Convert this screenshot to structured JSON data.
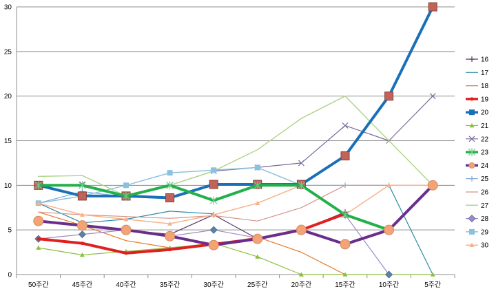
{
  "chart_data": {
    "type": "line",
    "title": "",
    "xlabel": "",
    "ylabel": "",
    "ylim": [
      0,
      30
    ],
    "y_ticks": [
      0,
      5,
      10,
      15,
      20,
      25,
      30
    ],
    "grid": "horizontal",
    "legend_position": "right",
    "categories": [
      "50주간",
      "45주간",
      "40주간",
      "35주간",
      "30주간",
      "25주간",
      "20주간",
      "15주간",
      "10주간",
      "5주간"
    ],
    "series": [
      {
        "name": "16",
        "color": "#5c3566",
        "width": 1.2,
        "marker": "plus",
        "values": [
          6,
          5.5,
          5,
          4.5,
          6.7,
          4,
          5,
          7,
          null,
          null
        ]
      },
      {
        "name": "17",
        "color": "#2e8ba8",
        "width": 1.2,
        "marker": "none",
        "values": [
          8,
          5.8,
          6.2,
          7.1,
          6.8,
          null,
          null,
          null,
          10,
          0
        ]
      },
      {
        "name": "18",
        "color": "#e87722",
        "width": 1.2,
        "marker": "none",
        "values": [
          7,
          5.5,
          3.8,
          3,
          3.3,
          4.2,
          2.5,
          0,
          null,
          null
        ]
      },
      {
        "name": "19",
        "color": "#e02020",
        "width": 4,
        "marker": "dot",
        "values": [
          4,
          3.5,
          2.4,
          2.8,
          3.4,
          4,
          5,
          6.8,
          null,
          null
        ]
      },
      {
        "name": "20",
        "color": "#1a70b8",
        "width": 4,
        "marker": "square",
        "values": [
          10,
          8.8,
          8.8,
          8.6,
          10.1,
          10.1,
          10.1,
          13.3,
          20,
          30
        ]
      },
      {
        "name": "21",
        "color": "#8cbf3f",
        "width": 1.2,
        "marker": "triangle",
        "values": [
          3,
          2.2,
          2.6,
          3,
          3.5,
          2,
          0,
          0,
          0,
          0
        ]
      },
      {
        "name": "22",
        "color": "#7a6a9a",
        "width": 1.2,
        "marker": "x",
        "values": [
          10,
          10.1,
          8.8,
          10,
          11.6,
          12,
          12.5,
          16.7,
          15,
          20
        ]
      },
      {
        "name": "23",
        "color": "#22b04a",
        "width": 4,
        "marker": "star",
        "values": [
          10,
          10,
          8.8,
          10,
          8.3,
          10,
          10,
          6.7,
          5,
          null
        ]
      },
      {
        "name": "24",
        "color": "#6a2d8c",
        "width": 4,
        "marker": "circle",
        "values": [
          6,
          5.5,
          5,
          4.3,
          3.3,
          4,
          5,
          3.4,
          5,
          10
        ]
      },
      {
        "name": "25",
        "color": "#7aa8d8",
        "width": 1.2,
        "marker": "plus",
        "values": [
          8,
          9.3,
          8.7,
          8.5,
          10,
          10,
          10,
          10,
          10,
          10
        ]
      },
      {
        "name": "26",
        "color": "#d4948a",
        "width": 1.2,
        "marker": "none",
        "values": [
          7,
          6.7,
          6.5,
          6.3,
          6.6,
          6,
          7.5,
          10,
          10,
          10
        ]
      },
      {
        "name": "27",
        "color": "#b2d68c",
        "width": 1.5,
        "marker": "none",
        "values": [
          11,
          11.1,
          8.8,
          10,
          11.6,
          14,
          17.5,
          20,
          15,
          10
        ]
      },
      {
        "name": "28",
        "color": "#a088c8",
        "width": 1.2,
        "marker": "diamond",
        "values": [
          4,
          4.5,
          5,
          4.3,
          5,
          4.1,
          5,
          6.7,
          0,
          null
        ]
      },
      {
        "name": "29",
        "color": "#8cc0e0",
        "width": 1.5,
        "marker": "square",
        "values": [
          8,
          8.8,
          10,
          11.4,
          11.7,
          12,
          10,
          null,
          null,
          null
        ]
      },
      {
        "name": "30",
        "color": "#f7b28a",
        "width": 1.5,
        "marker": "triangle",
        "values": [
          8,
          6.7,
          6.2,
          5.7,
          6.7,
          8,
          10,
          6.7,
          10,
          10
        ]
      }
    ]
  }
}
